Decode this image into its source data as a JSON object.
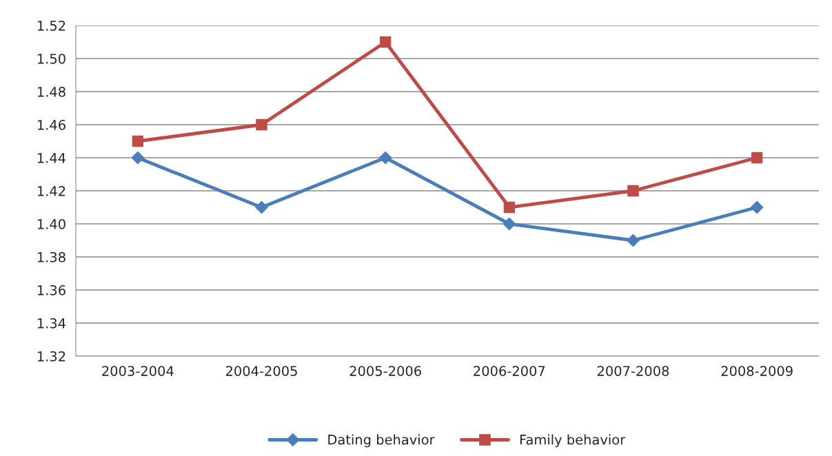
{
  "chart_data": {
    "type": "line",
    "categories": [
      "2003-2004",
      "2004-2005",
      "2005-2006",
      "2006-2007",
      "2007-2008",
      "2008-2009"
    ],
    "series": [
      {
        "name": "Dating behavior",
        "color": "#4a7ebb",
        "marker": "diamond",
        "values": [
          1.44,
          1.41,
          1.44,
          1.4,
          1.39,
          1.41
        ]
      },
      {
        "name": "Family behavior",
        "color": "#be4b48",
        "marker": "square",
        "values": [
          1.45,
          1.46,
          1.51,
          1.41,
          1.42,
          1.44
        ]
      }
    ],
    "ylim": [
      1.32,
      1.52
    ],
    "yticks": [
      {
        "value": 1.32,
        "label": "1.32"
      },
      {
        "value": 1.34,
        "label": "1.34"
      },
      {
        "value": 1.36,
        "label": "1.36"
      },
      {
        "value": 1.38,
        "label": "1.38"
      },
      {
        "value": 1.4,
        "label": "1.40"
      },
      {
        "value": 1.42,
        "label": "1.42"
      },
      {
        "value": 1.44,
        "label": "1.44"
      },
      {
        "value": 1.46,
        "label": "1.46"
      },
      {
        "value": 1.48,
        "label": "1.48"
      },
      {
        "value": 1.5,
        "label": "1.50"
      },
      {
        "value": 1.52,
        "label": "1.52"
      }
    ],
    "grid": "y",
    "legend": "bottom",
    "line_style": "solid"
  }
}
